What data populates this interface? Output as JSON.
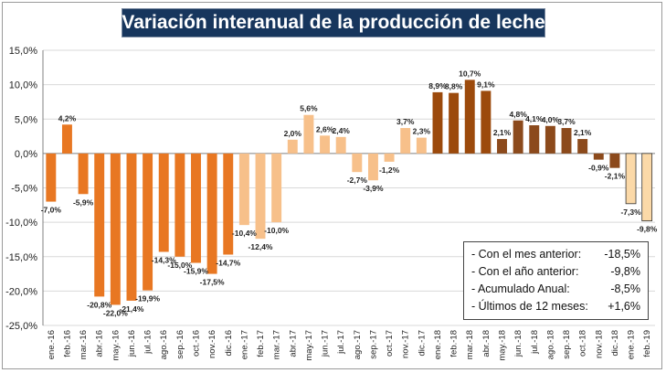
{
  "title": "Variación interanual de la producción de leche",
  "summary": [
    {
      "label": "- Con el mes anterior:",
      "value": "-18,5%"
    },
    {
      "label": "- Con el año anterior:",
      "value": "-9,8%"
    },
    {
      "label": "- Acumulado Anual:",
      "value": "-8,5%"
    },
    {
      "label": "- Últimos de 12 meses:",
      "value": "+1,6%"
    }
  ],
  "colors": {
    "2016": "#e87722",
    "2017": "#f7c08a",
    "2018": "#9c4a0c",
    "2018_late": "#8c4a1c",
    "2019": "#fbd9a8",
    "grid": "#d9d9d9",
    "axis": "#808080"
  },
  "chart_data": {
    "type": "bar",
    "ylim": [
      -25,
      15
    ],
    "yticks": [
      "-25,0%",
      "-20,0%",
      "-15,0%",
      "-10,0%",
      "-5,0%",
      "0,0%",
      "5,0%",
      "10,0%",
      "15,0%"
    ],
    "categories": [
      "ene.-16",
      "feb.-16",
      "mar.-16",
      "abr.-16",
      "may.-16",
      "jun.-16",
      "jul.-16",
      "ago.-16",
      "sep.-16",
      "oct.-16",
      "nov.-16",
      "dic.-16",
      "ene.-17",
      "feb.-17",
      "mar.-17",
      "abr.-17",
      "may.-17",
      "jun.-17",
      "jul.-17",
      "ago.-17",
      "sep.-17",
      "oct.-17",
      "nov.-17",
      "dic.-17",
      "ene.-18",
      "feb.-18",
      "mar.-18",
      "abr.-18",
      "may.-18",
      "jun.-18",
      "jul.-18",
      "ago.-18",
      "sep.-18",
      "oct.-18",
      "nov.-18",
      "dic.-18",
      "ene.-19",
      "feb.-19"
    ],
    "values": [
      -7.0,
      4.2,
      -5.9,
      -20.8,
      -22.0,
      -21.4,
      -19.9,
      -14.3,
      -15.0,
      -15.9,
      -17.5,
      -14.7,
      -10.4,
      -12.4,
      -10.0,
      2.0,
      5.6,
      2.6,
      2.4,
      -2.7,
      -3.9,
      -1.2,
      3.7,
      2.3,
      8.9,
      8.8,
      10.7,
      9.1,
      2.1,
      4.8,
      4.1,
      4.0,
      3.7,
      2.1,
      -0.9,
      -2.1,
      -7.3,
      -9.8
    ],
    "data_labels": [
      "-7,0%",
      "4,2%",
      "-5,9%",
      "-20,8%",
      "-22,0%",
      "-21,4%",
      "-19,9%",
      "-14,3%",
      "-15,0%",
      "-15,9%",
      "-17,5%",
      "-14,7%",
      "-10,4%",
      "-12,4%",
      "-10,0%",
      "2,0%",
      "5,6%",
      "2,6%",
      "2,4%",
      "-2,7%",
      "-3,9%",
      "-1,2%",
      "3,7%",
      "2,3%",
      "8,9%",
      "8,8%",
      "10,7%",
      "9,1%",
      "2,1%",
      "4,8%",
      "4,1%",
      "4,0%",
      "3,7%",
      "2,1%",
      "-0,9%",
      "-2,1%",
      "-7,3%",
      "-9,8%"
    ],
    "color_groups": [
      "2016",
      "2016",
      "2016",
      "2016",
      "2016",
      "2016",
      "2016",
      "2016",
      "2016",
      "2016",
      "2016",
      "2016",
      "2017",
      "2017",
      "2017",
      "2017",
      "2017",
      "2017",
      "2017",
      "2017",
      "2017",
      "2017",
      "2017",
      "2017",
      "2018",
      "2018",
      "2018",
      "2018",
      "2018_late",
      "2018_late",
      "2018_late",
      "2018_late",
      "2018_late",
      "2018_late",
      "2018_late",
      "2018_late",
      "2019",
      "2019"
    ],
    "outlined": [
      false,
      false,
      false,
      false,
      false,
      false,
      false,
      false,
      false,
      false,
      false,
      false,
      false,
      false,
      false,
      false,
      false,
      false,
      false,
      false,
      false,
      false,
      false,
      false,
      false,
      false,
      false,
      false,
      false,
      false,
      false,
      false,
      false,
      false,
      false,
      false,
      true,
      true
    ],
    "grid": true
  }
}
